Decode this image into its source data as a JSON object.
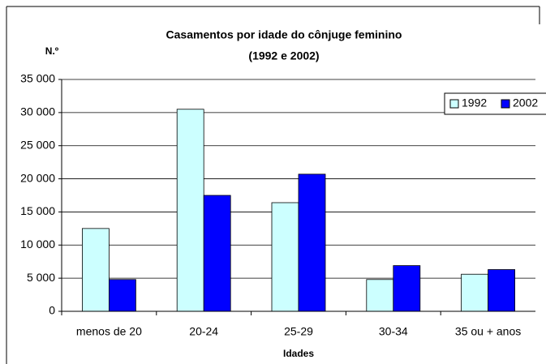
{
  "chart_data": {
    "type": "bar",
    "title": "Casamentos por idade do cônjuge feminino",
    "subtitle": "(1992 e 2002)",
    "y_label": "N.º",
    "x_label": "Idades",
    "categories": [
      "menos de 20",
      "20-24",
      "25-29",
      "30-34",
      "35 ou + anos"
    ],
    "series": [
      {
        "name": "1992",
        "color": "#ccffff",
        "values": [
          12500,
          30500,
          16400,
          4800,
          5600
        ]
      },
      {
        "name": "2002",
        "color": "#0000ff",
        "values": [
          4800,
          17500,
          20700,
          6900,
          6300
        ]
      }
    ],
    "ylim": [
      0,
      35000
    ],
    "yticks": [
      0,
      {
        "value": 5000,
        "label": "5 000"
      },
      {
        "value": 10000,
        "label": "10 000"
      },
      {
        "value": 15000,
        "label": "15 000"
      },
      {
        "value": 20000,
        "label": "20 000"
      },
      {
        "value": 25000,
        "label": "25 000"
      },
      {
        "value": 30000,
        "label": "30 000"
      },
      {
        "value": 35000,
        "label": "35 000"
      }
    ],
    "grid": true,
    "legend": "right"
  }
}
